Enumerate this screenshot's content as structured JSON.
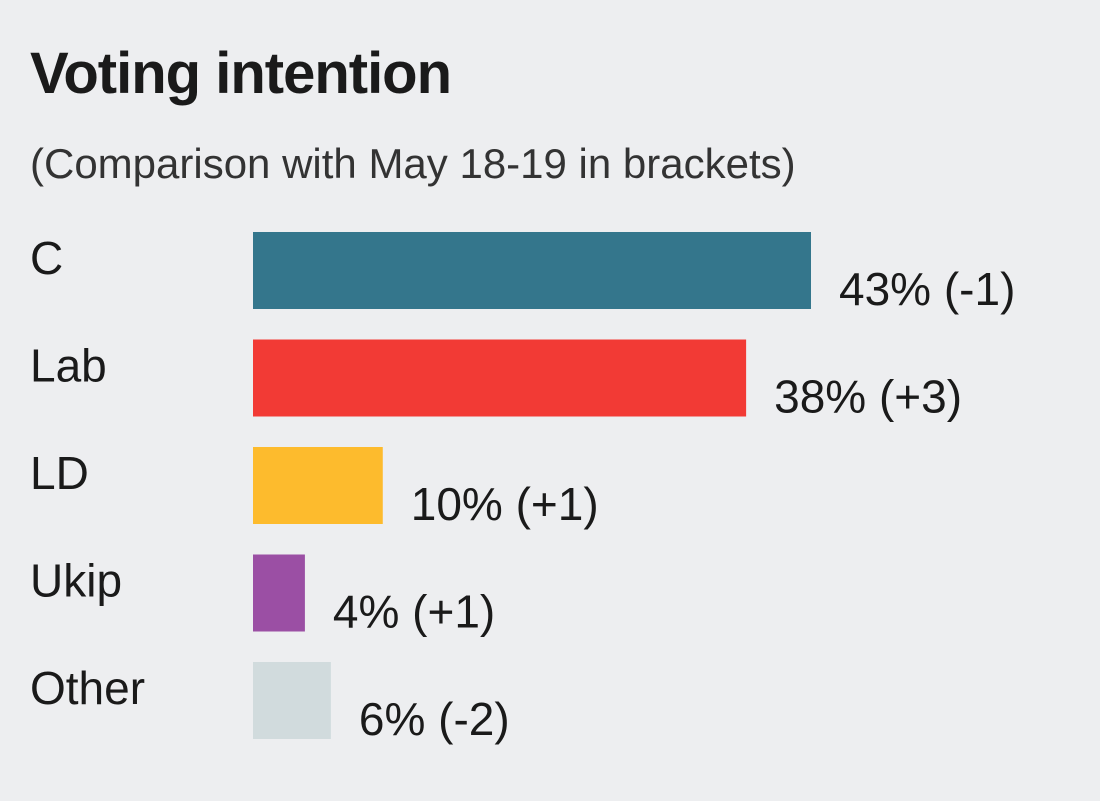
{
  "chart_data": {
    "type": "bar",
    "orientation": "horizontal",
    "title": "Voting intention",
    "subtitle": "(Comparison with May 18-19 in brackets)",
    "categories": [
      "C",
      "Lab",
      "LD",
      "Ukip",
      "Other"
    ],
    "values": [
      43,
      38,
      10,
      4,
      6
    ],
    "changes": [
      "-1",
      "+3",
      "+1",
      "+1",
      "-2"
    ],
    "data_labels": [
      "43% (-1)",
      "38% (+3)",
      "10% (+1)",
      "4% (+1)",
      "6% (-2)"
    ],
    "colors": [
      "#34768c",
      "#f23a35",
      "#fdbb2d",
      "#9b4fa4",
      "#d1dbdd"
    ],
    "xlim": [
      0,
      43
    ],
    "grid": false,
    "legend": "none"
  }
}
